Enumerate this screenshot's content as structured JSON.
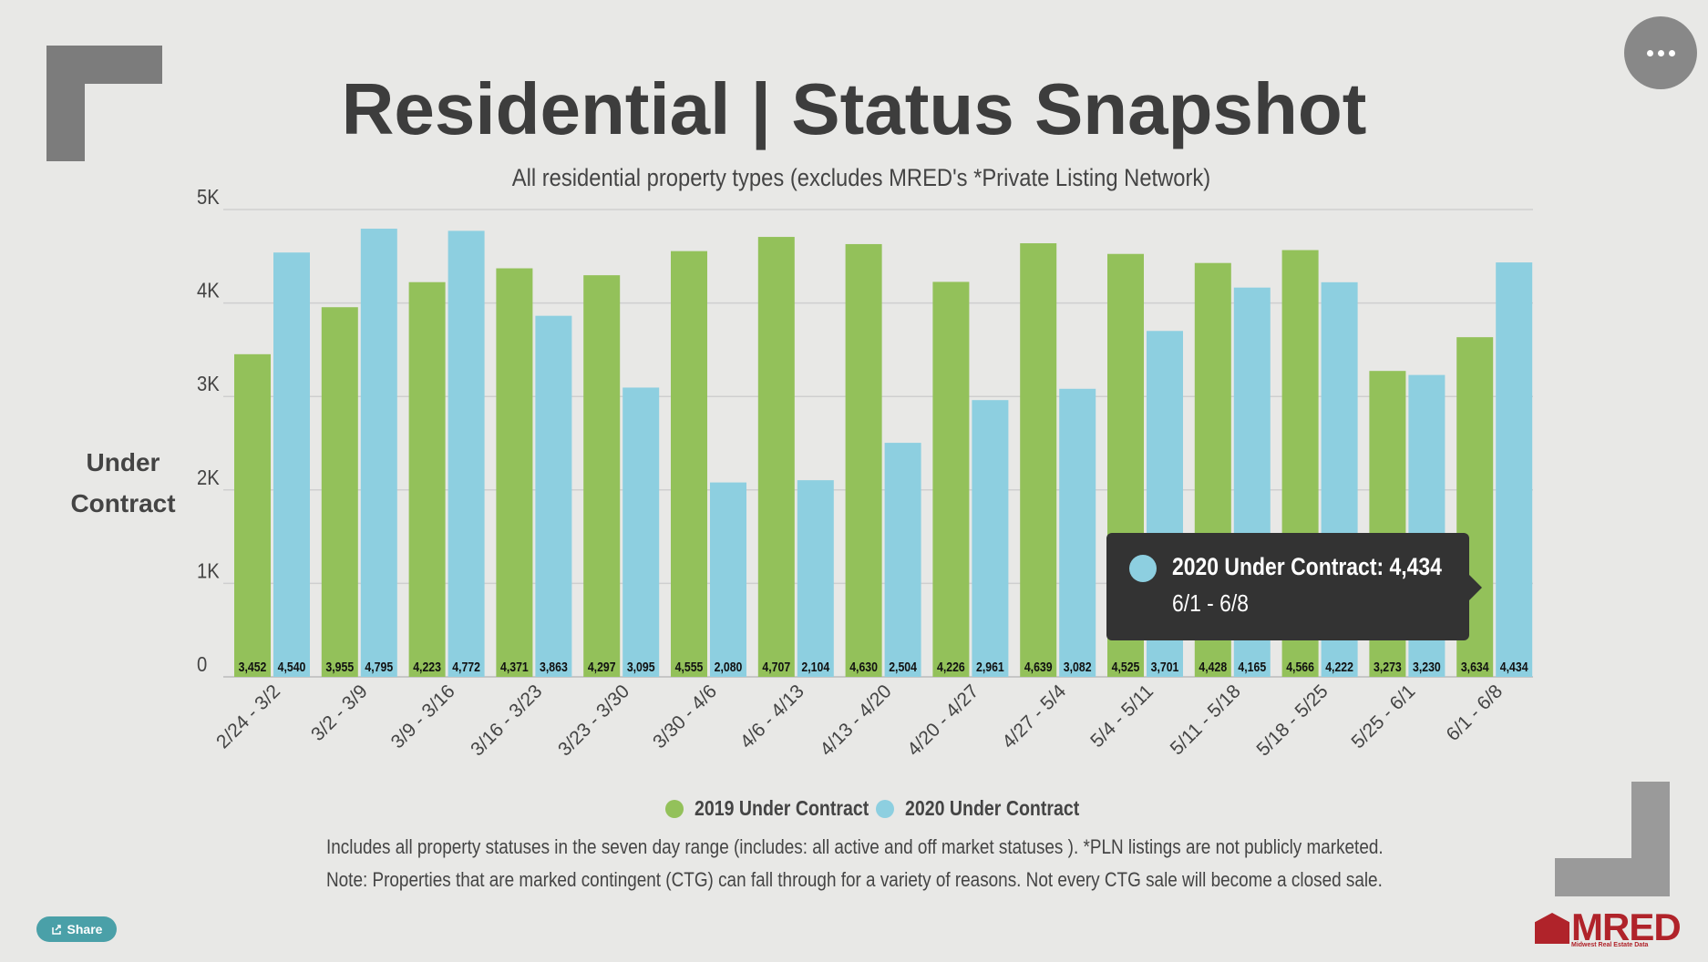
{
  "header": {
    "title": "Residential | Status Snapshot",
    "subtitle": "All residential property types (excludes MRED's *Private Listing Network)"
  },
  "menu": {
    "icon": "more-horizontal-icon"
  },
  "chart_data": {
    "type": "bar",
    "ylabel_line1": "Under",
    "ylabel_line2": "Contract",
    "ylim": [
      0,
      5000
    ],
    "yticks": [
      {
        "value": 0,
        "label": "0"
      },
      {
        "value": 1000,
        "label": "1K"
      },
      {
        "value": 2000,
        "label": "2K"
      },
      {
        "value": 3000,
        "label": "3K"
      },
      {
        "value": 4000,
        "label": "4K"
      },
      {
        "value": 5000,
        "label": "5K"
      }
    ],
    "categories": [
      "2/24 - 3/2",
      "3/2 - 3/9",
      "3/9 - 3/16",
      "3/16 - 3/23",
      "3/23 - 3/30",
      "3/30 - 4/6",
      "4/6 - 4/13",
      "4/13 - 4/20",
      "4/20 - 4/27",
      "4/27 - 5/4",
      "5/4 - 5/11",
      "5/11 - 5/18",
      "5/18 - 5/25",
      "5/25 - 6/1",
      "6/1 - 6/8"
    ],
    "series": [
      {
        "name": "2019 Under Contract",
        "color": "#93c15a",
        "values": [
          3452,
          3955,
          4223,
          4371,
          4297,
          4555,
          4707,
          4630,
          4226,
          4639,
          4525,
          4428,
          4566,
          3273,
          3634
        ],
        "labels": [
          "3,452",
          "3,955",
          "4,223",
          "4,371",
          "4,297",
          "4,555",
          "4,707",
          "4,630",
          "4,226",
          "4,639",
          "4,525",
          "4,428",
          "4,566",
          "3,273",
          "3,634"
        ]
      },
      {
        "name": "2020 Under Contract",
        "color": "#8dcfe0",
        "values": [
          4540,
          4795,
          4772,
          3863,
          3095,
          2080,
          2104,
          2504,
          2961,
          3082,
          3701,
          4165,
          4222,
          3230,
          4434
        ],
        "labels": [
          "4,540",
          "4,795",
          "4,772",
          "3,863",
          "3,095",
          "2,080",
          "2,104",
          "2,504",
          "2,961",
          "3,082",
          "3,701",
          "4,165",
          "4,222",
          "3,230",
          "4,434"
        ]
      }
    ],
    "grid": true,
    "legend_position": "bottom"
  },
  "tooltip": {
    "series": "2020 Under Contract: 4,434",
    "category": "6/1 - 6/8",
    "color": "#8dcfe0"
  },
  "legend": {
    "item1": "2019 Under Contract",
    "item2": "2020 Under Contract"
  },
  "notes": {
    "line1": "Includes all property statuses in the seven day range (includes: all active and off market statuses ).  *PLN listings are not publicly marketed.",
    "line2": "Note: Properties that are marked contingent (CTG) can fall through for a variety of reasons. Not every CTG sale will become a closed sale."
  },
  "share": {
    "label": "Share",
    "icon": "share-icon"
  },
  "logo": {
    "name": "MRED",
    "tagline": "Midwest Real Estate Data"
  }
}
